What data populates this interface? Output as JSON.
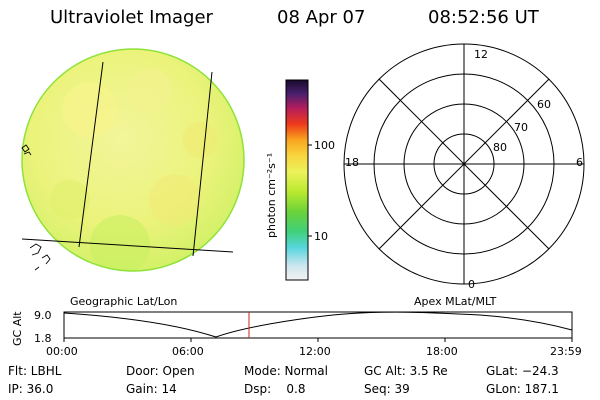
{
  "header": {
    "instrument": "Ultraviolet Imager",
    "date": "08 Apr 07",
    "time": "08:52:56 UT"
  },
  "colorbar": {
    "unit_label": "photon cm⁻²s⁻¹",
    "ticks": [
      "100",
      "10"
    ]
  },
  "polar_plot": {
    "mlt_labels": {
      "top": "12",
      "right": "6",
      "bottom": "0",
      "left": "18"
    },
    "lat_labels": [
      "60",
      "70",
      "80"
    ]
  },
  "orbit_plot": {
    "ylabel": "GC Alt",
    "y_ticks": [
      "9.0",
      "1.8"
    ],
    "left_title": "Geographic Lat/Lon",
    "right_title": "Apex MLat/MLT",
    "x_ticks": [
      "00:00",
      "06:00",
      "12:00",
      "18:00",
      "23:59"
    ],
    "marker_time": "08:52:56"
  },
  "footer": {
    "row1": {
      "flt": "Flt: LBHL",
      "door": "Door: Open",
      "mode": "Mode: Normal",
      "gcalt": "GC Alt: 3.5 Re",
      "glat": "GLat: −24.3"
    },
    "row2": {
      "ip": "IP: 36.0",
      "gain": "Gain: 14",
      "dsp": "Dsp:    0.8",
      "seq": "Seq: 39",
      "glon": "GLon: 187.1"
    }
  },
  "colors": {
    "disk_fill": "#e6f57a",
    "disk_edge": "#8fe23a",
    "orbit_marker": "#cc2222"
  }
}
